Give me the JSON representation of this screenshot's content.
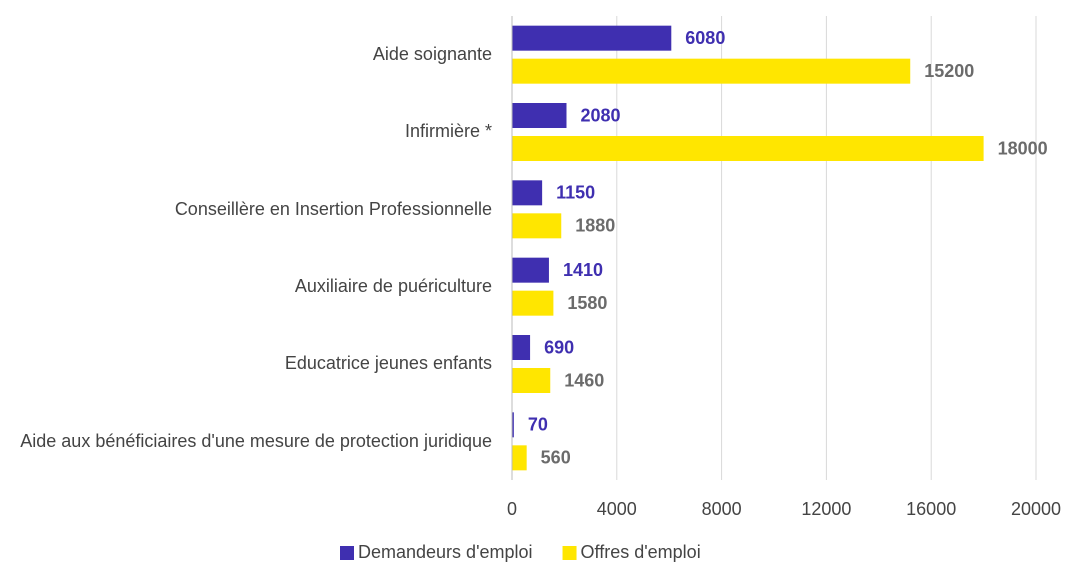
{
  "chart_data": {
    "type": "barh",
    "categories": [
      "Aide soignante",
      "Infirmière *",
      "Conseillère en Insertion Professionnelle",
      "Auxiliaire de puériculture",
      "Educatrice jeunes enfants",
      "Aide aux bénéficiaires d'une mesure de protection juridique"
    ],
    "series": [
      {
        "name": "Demandeurs d'emploi",
        "color": "#3f2fb0",
        "label_color": "#3f2fb0",
        "values": [
          6080,
          2080,
          1150,
          1410,
          690,
          70
        ]
      },
      {
        "name": "Offres d'emploi",
        "color": "#ffe600",
        "label_color": "#6b6b6b",
        "values": [
          15200,
          18000,
          1880,
          1580,
          1460,
          560
        ]
      }
    ],
    "xlim": [
      0,
      20000
    ],
    "xticks": [
      0,
      4000,
      8000,
      12000,
      16000,
      20000
    ],
    "grid": true,
    "legend": "bottom"
  }
}
